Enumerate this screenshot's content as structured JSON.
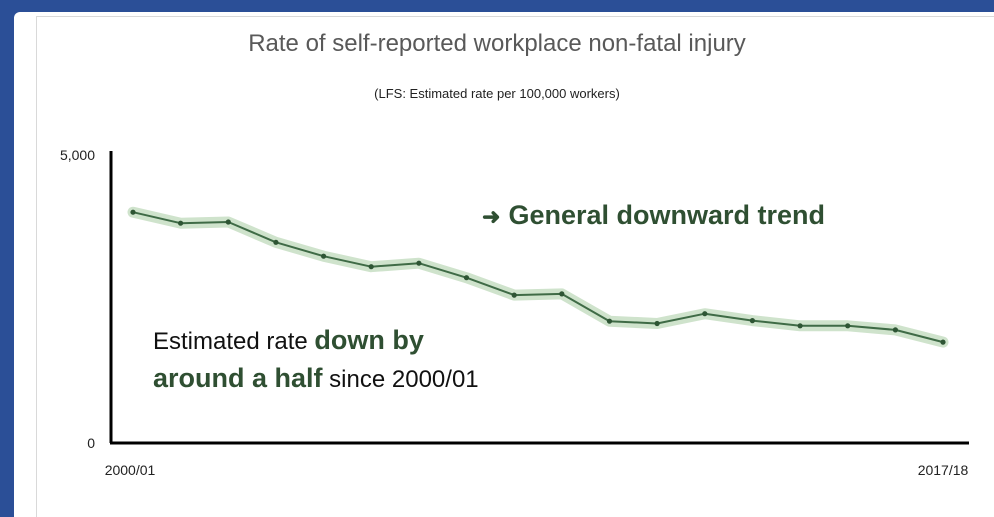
{
  "chart_data": {
    "type": "line",
    "title": "Rate of self-reported workplace non-fatal injury",
    "subtitle": "(LFS: Estimated rate per 100,000 workers)",
    "x_tick_labels": [
      "2000/01",
      "2017/18"
    ],
    "y_tick_labels": [
      "5,000",
      "0"
    ],
    "ylim": [
      0,
      5000
    ],
    "grid": false,
    "legend": "none",
    "series": [
      {
        "values": [
          3980,
          3790,
          3810,
          3460,
          3220,
          3040,
          3100,
          2850,
          2550,
          2570,
          2100,
          2060,
          2230,
          2110,
          2020,
          2020,
          1950,
          1740
        ]
      }
    ],
    "annotations": {
      "trend": {
        "arrow": "➜",
        "text": "General downward trend"
      },
      "rate": {
        "part1": "Estimated rate ",
        "part2": "down by",
        "part3": "around a half",
        "part4": " since 2000/01"
      }
    },
    "colors": {
      "line": "#3f6b46",
      "band": "#cfe3cc",
      "marker": "#2e5534",
      "axis": "#000000",
      "annotation": "#2f4f32"
    }
  }
}
